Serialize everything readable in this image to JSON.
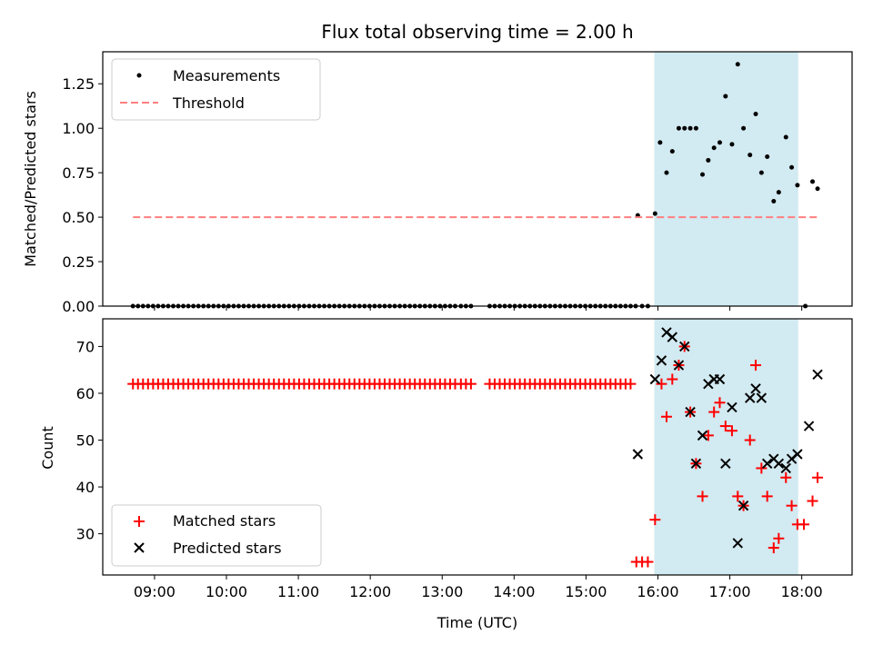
{
  "chart_data": {
    "type": "scatter",
    "title": "Flux total observing time = 2.00 h",
    "xlabel": "Time (UTC)",
    "x_unit": "hours UTC",
    "x_ticks": [
      "09:00",
      "10:00",
      "11:00",
      "12:00",
      "13:00",
      "14:00",
      "15:00",
      "16:00",
      "17:00",
      "18:00"
    ],
    "x_tick_values": [
      9,
      10,
      11,
      12,
      13,
      14,
      15,
      16,
      17,
      18
    ],
    "xlim": [
      8.28,
      18.7
    ],
    "shaded_interval": {
      "x": [
        15.95,
        17.95
      ],
      "color": "#add8e6"
    },
    "panels": [
      {
        "ylabel": "Matched/Predicted stars",
        "ylim": [
          0,
          1.43
        ],
        "y_ticks": [
          "0.00",
          "0.25",
          "0.50",
          "0.75",
          "1.00",
          "1.25"
        ],
        "y_tick_values": [
          0,
          0.25,
          0.5,
          0.75,
          1.0,
          1.25
        ],
        "legend": {
          "placement": "upper left",
          "entries": [
            "Measurements",
            "Threshold"
          ]
        },
        "series": [
          {
            "name": "Measurements",
            "marker": "dot",
            "color": "#000000",
            "zeros_x": [
              8.7,
              8.77,
              8.84,
              8.91,
              8.98,
              9.05,
              9.12,
              9.19,
              9.26,
              9.33,
              9.4,
              9.47,
              9.54,
              9.61,
              9.68,
              9.75,
              9.82,
              9.89,
              9.96,
              10.03,
              10.1,
              10.17,
              10.24,
              10.31,
              10.38,
              10.45,
              10.52,
              10.59,
              10.66,
              10.73,
              10.8,
              10.87,
              10.94,
              11.01,
              11.08,
              11.15,
              11.22,
              11.29,
              11.36,
              11.43,
              11.5,
              11.57,
              11.64,
              11.71,
              11.78,
              11.85,
              11.92,
              11.99,
              12.06,
              12.13,
              12.2,
              12.27,
              12.34,
              12.41,
              12.48,
              12.55,
              12.62,
              12.69,
              12.76,
              12.83,
              12.9,
              12.97,
              13.04,
              13.11,
              13.18,
              13.26,
              13.33,
              13.4,
              13.66,
              13.73,
              13.8,
              13.87,
              13.94,
              14.01,
              14.08,
              14.15,
              14.22,
              14.29,
              14.36,
              14.43,
              14.5,
              14.57,
              14.64,
              14.71,
              14.78,
              14.85,
              14.92,
              14.99,
              15.06,
              15.13,
              15.2,
              15.27,
              15.34,
              15.41,
              15.48,
              15.55,
              15.62,
              15.69,
              15.78,
              15.86,
              18.05
            ],
            "x": [
              15.72,
              15.96,
              16.03,
              16.12,
              16.2,
              16.29,
              16.37,
              16.45,
              16.53,
              16.62,
              16.7,
              16.78,
              16.86,
              16.94,
              17.03,
              17.11,
              17.19,
              17.28,
              17.36,
              17.44,
              17.52,
              17.61,
              17.68,
              17.78,
              17.86,
              17.94,
              18.15,
              18.22
            ],
            "y": [
              0.51,
              0.52,
              0.92,
              0.75,
              0.87,
              1.0,
              1.0,
              1.0,
              1.0,
              0.74,
              0.82,
              0.89,
              0.92,
              1.18,
              0.91,
              1.36,
              1.0,
              0.85,
              1.08,
              0.75,
              0.84,
              0.59,
              0.64,
              0.95,
              0.78,
              0.68,
              0.7,
              0.66
            ]
          },
          {
            "name": "Threshold",
            "style": "dashed",
            "color": "#ff7f7f",
            "x": [
              8.7,
              18.22
            ],
            "y": [
              0.5,
              0.5
            ]
          }
        ]
      },
      {
        "ylabel": "Count",
        "ylim": [
          21.2,
          75.9
        ],
        "y_ticks": [
          "30",
          "40",
          "50",
          "60",
          "70"
        ],
        "y_tick_values": [
          30,
          40,
          50,
          60,
          70
        ],
        "legend": {
          "placement": "lower left",
          "entries": [
            "Matched stars",
            "Predicted stars"
          ]
        },
        "series": [
          {
            "name": "Matched stars",
            "marker": "plus",
            "color": "#ff0000",
            "constant_value": 62,
            "constant_x": [
              8.7,
              8.77,
              8.84,
              8.91,
              8.98,
              9.05,
              9.12,
              9.19,
              9.26,
              9.33,
              9.4,
              9.47,
              9.54,
              9.61,
              9.68,
              9.75,
              9.82,
              9.89,
              9.96,
              10.03,
              10.1,
              10.17,
              10.24,
              10.31,
              10.38,
              10.45,
              10.52,
              10.59,
              10.66,
              10.73,
              10.8,
              10.87,
              10.94,
              11.01,
              11.08,
              11.15,
              11.22,
              11.29,
              11.36,
              11.43,
              11.5,
              11.57,
              11.64,
              11.71,
              11.78,
              11.85,
              11.92,
              11.99,
              12.06,
              12.13,
              12.2,
              12.27,
              12.34,
              12.41,
              12.48,
              12.55,
              12.62,
              12.69,
              12.76,
              12.83,
              12.9,
              12.97,
              13.04,
              13.11,
              13.18,
              13.26,
              13.33,
              13.4,
              13.66,
              13.73,
              13.8,
              13.87,
              13.94,
              14.01,
              14.08,
              14.15,
              14.22,
              14.29,
              14.36,
              14.43,
              14.5,
              14.57,
              14.64,
              14.71,
              14.78,
              14.85,
              14.92,
              14.99,
              15.06,
              15.13,
              15.2,
              15.27,
              15.34,
              15.41,
              15.48,
              15.55,
              15.62
            ],
            "x": [
              15.7,
              15.78,
              15.86,
              15.96,
              16.05,
              16.12,
              16.2,
              16.29,
              16.37,
              16.45,
              16.53,
              16.62,
              16.7,
              16.78,
              16.86,
              16.94,
              17.03,
              17.11,
              17.19,
              17.28,
              17.36,
              17.44,
              17.52,
              17.61,
              17.68,
              17.78,
              17.86,
              17.94,
              18.03,
              18.15,
              18.22
            ],
            "y": [
              24,
              24,
              24,
              33,
              62,
              55,
              63,
              66,
              70,
              56,
              45,
              38,
              51,
              56,
              58,
              53,
              52,
              38,
              36,
              50,
              66,
              44,
              38,
              27,
              29,
              42,
              36,
              32,
              32,
              37,
              42
            ]
          },
          {
            "name": "Predicted stars",
            "marker": "x",
            "color": "#000000",
            "x": [
              15.72,
              15.96,
              16.05,
              16.12,
              16.2,
              16.29,
              16.37,
              16.45,
              16.53,
              16.62,
              16.7,
              16.78,
              16.86,
              16.94,
              17.03,
              17.11,
              17.19,
              17.28,
              17.36,
              17.44,
              17.52,
              17.61,
              17.68,
              17.78,
              17.86,
              17.94,
              18.1,
              18.22
            ],
            "y": [
              47,
              63,
              67,
              73,
              72,
              66,
              70,
              56,
              45,
              51,
              62,
              63,
              63,
              45,
              57,
              28,
              36,
              59,
              61,
              59,
              45,
              46,
              45,
              44,
              46,
              47,
              53,
              64
            ]
          }
        ]
      }
    ]
  },
  "colors": {
    "shade": "#add8e6",
    "matched": "#ff0000",
    "predicted": "#000000",
    "measurement": "#000000",
    "threshold": "#ff7f7f"
  }
}
